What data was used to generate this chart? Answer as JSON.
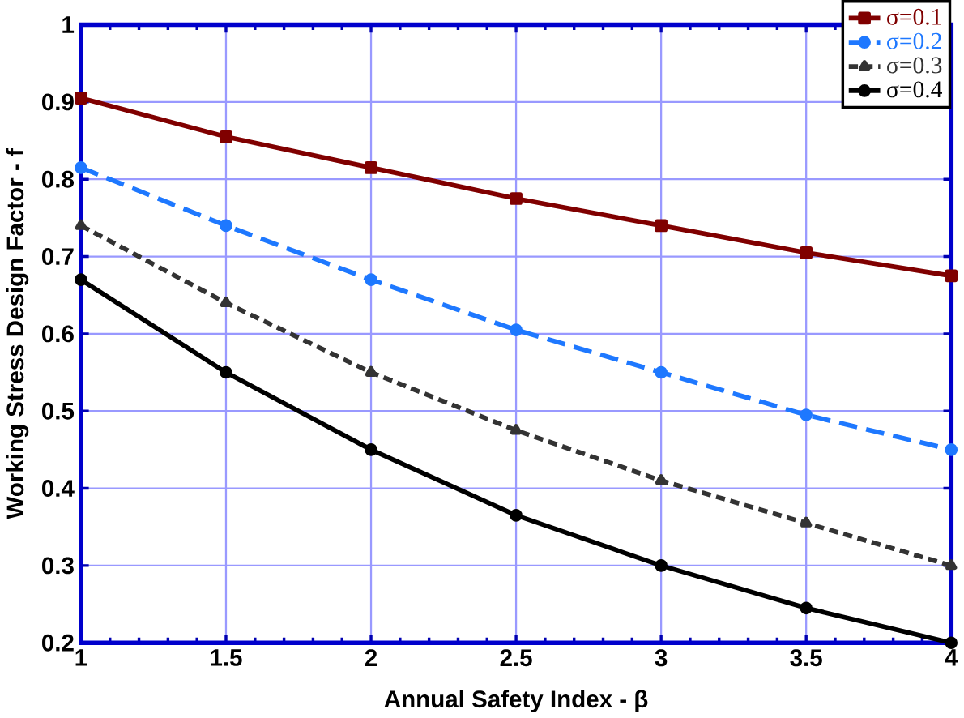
{
  "chart_data": {
    "type": "line",
    "xlabel": "Annual Safety Index - β",
    "ylabel": "Working Stress Design Factor - f",
    "x": [
      1,
      1.5,
      2,
      2.5,
      3,
      3.5,
      4
    ],
    "series": [
      {
        "name": "σ=0.1",
        "color": "#800000",
        "marker": "square",
        "line_style": "solid",
        "values": [
          0.905,
          0.855,
          0.815,
          0.775,
          0.74,
          0.705,
          0.675
        ]
      },
      {
        "name": "σ=0.2",
        "color": "#1e78ff",
        "marker": "circle",
        "line_style": "dashed",
        "values": [
          0.815,
          0.74,
          0.67,
          0.605,
          0.55,
          0.495,
          0.45
        ]
      },
      {
        "name": "σ=0.3",
        "color": "#333333",
        "marker": "triangle",
        "line_style": "dotted",
        "values": [
          0.74,
          0.64,
          0.55,
          0.475,
          0.41,
          0.355,
          0.3
        ]
      },
      {
        "name": "σ=0.4",
        "color": "#000000",
        "marker": "circle",
        "line_style": "solid",
        "values": [
          0.67,
          0.55,
          0.45,
          0.365,
          0.3,
          0.245,
          0.2
        ]
      }
    ],
    "xlim": [
      1,
      4
    ],
    "ylim": [
      0.2,
      1
    ],
    "xticks": [
      1,
      1.5,
      2,
      2.5,
      3,
      3.5,
      4
    ],
    "yticks": [
      0.2,
      0.3,
      0.4,
      0.5,
      0.6,
      0.7,
      0.8,
      0.9,
      1
    ],
    "grid": true,
    "legend": "top right"
  }
}
